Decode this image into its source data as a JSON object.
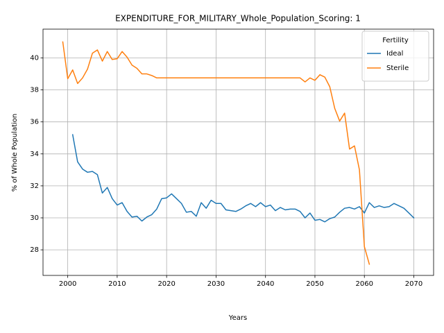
{
  "chart_data": {
    "type": "line",
    "title": "EXPENDITURE_FOR_MILITARY_Whole_Population_Scoring: 1",
    "xlabel": "Years",
    "ylabel": "% of Whole Population",
    "xlim": [
      1995,
      2074
    ],
    "ylim": [
      26.4,
      41.8
    ],
    "xticks": [
      2000,
      2010,
      2020,
      2030,
      2040,
      2050,
      2060,
      2070
    ],
    "yticks": [
      28,
      30,
      32,
      34,
      36,
      38,
      40
    ],
    "grid": true,
    "legend": {
      "title": "Fertility",
      "position": "top-right"
    },
    "series": [
      {
        "name": "Ideal",
        "color": "#1f77b4",
        "x": [
          2001,
          2002,
          2003,
          2004,
          2005,
          2006,
          2007,
          2008,
          2009,
          2010,
          2011,
          2012,
          2013,
          2014,
          2015,
          2016,
          2017,
          2018,
          2019,
          2020,
          2021,
          2022,
          2023,
          2024,
          2025,
          2026,
          2027,
          2028,
          2029,
          2030,
          2031,
          2032,
          2033,
          2034,
          2035,
          2036,
          2037,
          2038,
          2039,
          2040,
          2041,
          2042,
          2043,
          2044,
          2045,
          2046,
          2047,
          2048,
          2049,
          2050,
          2051,
          2052,
          2053,
          2054,
          2055,
          2056,
          2057,
          2058,
          2059,
          2060,
          2061,
          2062,
          2063,
          2064,
          2065,
          2066,
          2067,
          2068,
          2069,
          2070
        ],
        "y": [
          35.2,
          33.5,
          33.05,
          32.85,
          32.9,
          32.7,
          31.55,
          31.9,
          31.2,
          30.8,
          30.95,
          30.4,
          30.05,
          30.1,
          29.8,
          30.05,
          30.2,
          30.55,
          31.2,
          31.25,
          31.5,
          31.2,
          30.9,
          30.35,
          30.4,
          30.1,
          30.95,
          30.6,
          31.1,
          30.9,
          30.9,
          30.5,
          30.45,
          30.4,
          30.55,
          30.75,
          30.9,
          30.7,
          30.95,
          30.7,
          30.8,
          30.45,
          30.65,
          30.5,
          30.55,
          30.55,
          30.4,
          30.0,
          30.3,
          29.85,
          29.9,
          29.75,
          29.95,
          30.05,
          30.35,
          30.6,
          30.65,
          30.55,
          30.7,
          30.3,
          30.95,
          30.65,
          30.75,
          30.65,
          30.7,
          30.9,
          30.75,
          30.6,
          30.3,
          30.0
        ]
      },
      {
        "name": "Sterile",
        "color": "#ff7f0e",
        "x": [
          1999,
          2000,
          2001,
          2002,
          2003,
          2004,
          2005,
          2006,
          2007,
          2008,
          2009,
          2010,
          2011,
          2012,
          2013,
          2014,
          2015,
          2016,
          2017,
          2018,
          2019,
          2020,
          2021,
          2022,
          2023,
          2024,
          2025,
          2026,
          2027,
          2028,
          2029,
          2030,
          2031,
          2032,
          2033,
          2034,
          2035,
          2036,
          2037,
          2038,
          2039,
          2040,
          2041,
          2042,
          2043,
          2044,
          2045,
          2046,
          2047,
          2048,
          2049,
          2050,
          2051,
          2052,
          2053,
          2054,
          2055,
          2056,
          2057,
          2058,
          2059,
          2060,
          2061
        ],
        "y": [
          41.0,
          38.7,
          39.25,
          38.4,
          38.75,
          39.3,
          40.3,
          40.5,
          39.8,
          40.4,
          39.9,
          39.95,
          40.4,
          40.05,
          39.55,
          39.35,
          39.0,
          39.0,
          38.9,
          38.75,
          38.75,
          38.75,
          38.75,
          38.75,
          38.75,
          38.75,
          38.75,
          38.75,
          38.75,
          38.75,
          38.75,
          38.75,
          38.75,
          38.75,
          38.75,
          38.75,
          38.75,
          38.75,
          38.75,
          38.75,
          38.75,
          38.75,
          38.75,
          38.75,
          38.75,
          38.75,
          38.75,
          38.75,
          38.75,
          38.5,
          38.75,
          38.6,
          38.95,
          38.8,
          38.2,
          36.85,
          36.05,
          36.55,
          34.3,
          34.5,
          33.0,
          28.2,
          27.1
        ]
      }
    ]
  }
}
